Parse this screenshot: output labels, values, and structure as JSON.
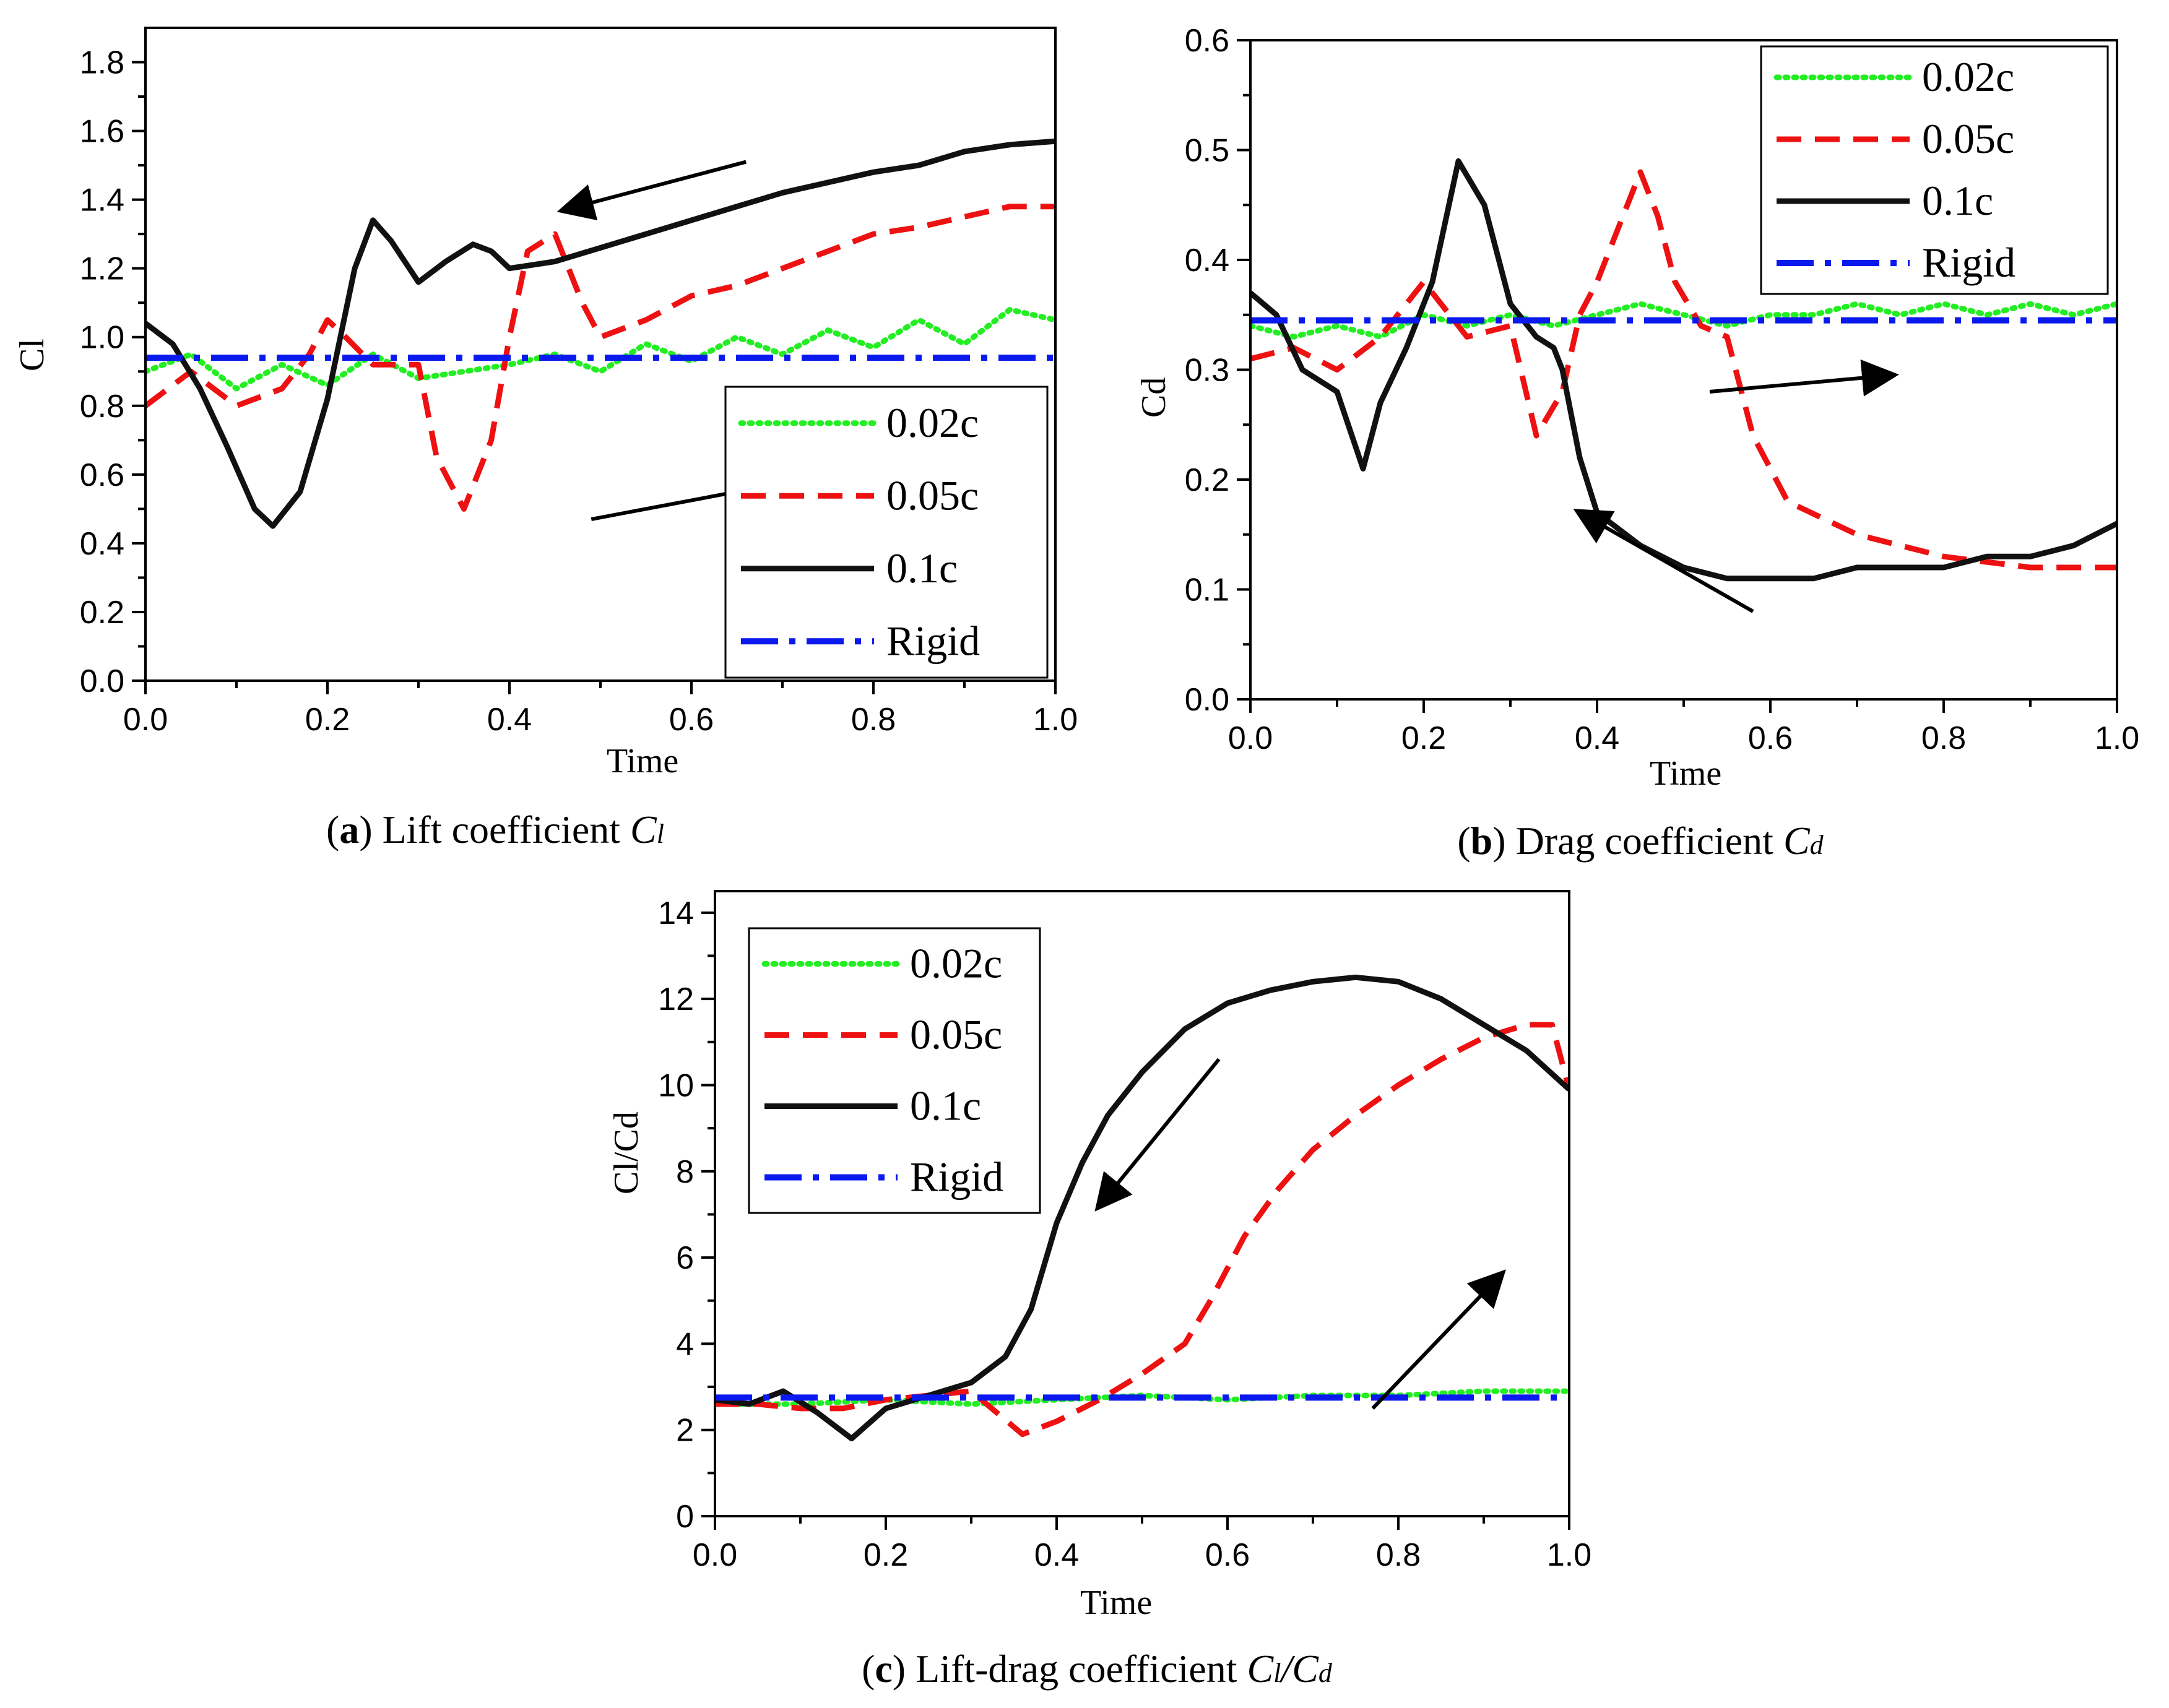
{
  "chart_data": [
    {
      "id": "a",
      "type": "line",
      "caption": {
        "letter": "a",
        "text": "Lift coefficient",
        "symbol": "C",
        "sub": "l"
      },
      "title": "",
      "xlabel": "Time",
      "ylabel": "Cl",
      "xlim": [
        0,
        1
      ],
      "ylim": [
        0,
        1.9
      ],
      "xticks": [
        0.0,
        0.2,
        0.4,
        0.6,
        0.8,
        1.0
      ],
      "xtick_labels": [
        "0.0",
        "0.2",
        "0.4",
        "0.6",
        "0.8",
        "1.0"
      ],
      "yticks": [
        0,
        0.2,
        0.4,
        0.6,
        0.8,
        1.0,
        1.2,
        1.4,
        1.6,
        1.8
      ],
      "ytick_labels": [
        "0.0",
        "0.2",
        "0.4",
        "0.6",
        "0.8",
        "1.0",
        "1.2",
        "1.4",
        "1.6",
        "1.8"
      ],
      "legend": {
        "position": "bottom-right",
        "entries": [
          "0.02c",
          "0.05c",
          "0.1c",
          "Rigid"
        ]
      },
      "series": [
        {
          "name": "0.02c",
          "color": "#22ee22",
          "style": "dotted",
          "x": [
            0,
            0.05,
            0.1,
            0.15,
            0.2,
            0.25,
            0.3,
            0.35,
            0.4,
            0.45,
            0.5,
            0.55,
            0.6,
            0.65,
            0.7,
            0.75,
            0.8,
            0.85,
            0.9,
            0.95,
            1.0
          ],
          "y": [
            0.9,
            0.95,
            0.85,
            0.92,
            0.86,
            0.95,
            0.88,
            0.9,
            0.92,
            0.95,
            0.9,
            0.98,
            0.93,
            1.0,
            0.95,
            1.02,
            0.97,
            1.05,
            0.98,
            1.08,
            1.05
          ]
        },
        {
          "name": "0.05c",
          "color": "#ee1111",
          "style": "dashed",
          "x": [
            0,
            0.05,
            0.1,
            0.15,
            0.18,
            0.2,
            0.22,
            0.25,
            0.3,
            0.32,
            0.35,
            0.38,
            0.4,
            0.42,
            0.45,
            0.48,
            0.5,
            0.55,
            0.6,
            0.65,
            0.7,
            0.75,
            0.8,
            0.85,
            0.9,
            0.95,
            1.0
          ],
          "y": [
            0.8,
            0.9,
            0.8,
            0.85,
            0.95,
            1.05,
            1.0,
            0.92,
            0.92,
            0.65,
            0.5,
            0.7,
            1.0,
            1.25,
            1.3,
            1.1,
            1.0,
            1.05,
            1.12,
            1.15,
            1.2,
            1.25,
            1.3,
            1.32,
            1.35,
            1.38,
            1.38
          ]
        },
        {
          "name": "0.1c",
          "color": "#111111",
          "style": "solid",
          "x": [
            0,
            0.03,
            0.06,
            0.09,
            0.12,
            0.14,
            0.17,
            0.2,
            0.23,
            0.25,
            0.27,
            0.3,
            0.33,
            0.36,
            0.38,
            0.4,
            0.45,
            0.5,
            0.55,
            0.6,
            0.65,
            0.7,
            0.75,
            0.8,
            0.85,
            0.9,
            0.95,
            1.0
          ],
          "y": [
            1.04,
            0.98,
            0.85,
            0.68,
            0.5,
            0.45,
            0.55,
            0.82,
            1.2,
            1.34,
            1.28,
            1.16,
            1.22,
            1.27,
            1.25,
            1.2,
            1.22,
            1.26,
            1.3,
            1.34,
            1.38,
            1.42,
            1.45,
            1.48,
            1.5,
            1.54,
            1.56,
            1.57
          ]
        },
        {
          "name": "Rigid",
          "color": "#0a1aee",
          "style": "dashdot",
          "x": [
            0,
            1.0
          ],
          "y": [
            0.94,
            0.94
          ]
        }
      ],
      "arrows": [
        {
          "from": [
            0.66,
            1.51
          ],
          "to": [
            0.46,
            1.37
          ]
        },
        {
          "from": [
            0.49,
            0.47
          ],
          "to": [
            0.71,
            0.58
          ]
        }
      ]
    },
    {
      "id": "b",
      "type": "line",
      "caption": {
        "letter": "b",
        "text": "Drag coefficient",
        "symbol": "C",
        "sub": "d"
      },
      "title": "",
      "xlabel": "Time",
      "ylabel": "Cd",
      "xlim": [
        0,
        1
      ],
      "ylim": [
        0,
        0.6
      ],
      "xticks": [
        0.0,
        0.2,
        0.4,
        0.6,
        0.8,
        1.0
      ],
      "xtick_labels": [
        "0.0",
        "0.2",
        "0.4",
        "0.6",
        "0.8",
        "1.0"
      ],
      "yticks": [
        0,
        0.1,
        0.2,
        0.3,
        0.4,
        0.5,
        0.6
      ],
      "ytick_labels": [
        "0.0",
        "0.1",
        "0.2",
        "0.3",
        "0.4",
        "0.5",
        "0.6"
      ],
      "legend": {
        "position": "top-right",
        "entries": [
          "0.02c",
          "0.05c",
          "0.1c",
          "Rigid"
        ]
      },
      "series": [
        {
          "name": "0.02c",
          "color": "#22ee22",
          "style": "dotted",
          "x": [
            0,
            0.05,
            0.1,
            0.15,
            0.2,
            0.25,
            0.3,
            0.35,
            0.4,
            0.45,
            0.5,
            0.55,
            0.6,
            0.65,
            0.7,
            0.75,
            0.8,
            0.85,
            0.9,
            0.95,
            1.0
          ],
          "y": [
            0.34,
            0.33,
            0.34,
            0.33,
            0.35,
            0.34,
            0.35,
            0.34,
            0.35,
            0.36,
            0.35,
            0.34,
            0.35,
            0.35,
            0.36,
            0.35,
            0.36,
            0.35,
            0.36,
            0.35,
            0.36
          ]
        },
        {
          "name": "0.05c",
          "color": "#ee1111",
          "style": "dashed",
          "x": [
            0,
            0.05,
            0.1,
            0.15,
            0.2,
            0.25,
            0.3,
            0.33,
            0.36,
            0.38,
            0.4,
            0.42,
            0.45,
            0.47,
            0.49,
            0.52,
            0.55,
            0.58,
            0.62,
            0.7,
            0.8,
            0.9,
            0.95,
            1.0
          ],
          "y": [
            0.31,
            0.32,
            0.3,
            0.33,
            0.38,
            0.33,
            0.34,
            0.24,
            0.28,
            0.35,
            0.38,
            0.42,
            0.48,
            0.44,
            0.38,
            0.34,
            0.33,
            0.24,
            0.18,
            0.15,
            0.13,
            0.12,
            0.12,
            0.12
          ]
        },
        {
          "name": "0.1c",
          "color": "#111111",
          "style": "solid",
          "x": [
            0,
            0.03,
            0.06,
            0.1,
            0.13,
            0.15,
            0.18,
            0.21,
            0.24,
            0.27,
            0.3,
            0.33,
            0.35,
            0.36,
            0.38,
            0.4,
            0.45,
            0.5,
            0.55,
            0.6,
            0.65,
            0.7,
            0.75,
            0.8,
            0.85,
            0.9,
            0.95,
            1.0
          ],
          "y": [
            0.37,
            0.35,
            0.3,
            0.28,
            0.21,
            0.27,
            0.32,
            0.38,
            0.49,
            0.45,
            0.36,
            0.33,
            0.32,
            0.3,
            0.22,
            0.17,
            0.14,
            0.12,
            0.11,
            0.11,
            0.11,
            0.12,
            0.12,
            0.12,
            0.13,
            0.13,
            0.14,
            0.16
          ]
        },
        {
          "name": "Rigid",
          "color": "#0a1aee",
          "style": "dashdot",
          "x": [
            0,
            1.0
          ],
          "y": [
            0.345,
            0.345
          ]
        }
      ],
      "arrows": [
        {
          "from": [
            0.58,
            0.08
          ],
          "to": [
            0.38,
            0.17
          ]
        },
        {
          "from": [
            0.53,
            0.28
          ],
          "to": [
            0.74,
            0.295
          ]
        }
      ]
    },
    {
      "id": "c",
      "type": "line",
      "caption": {
        "letter": "c",
        "text": "Lift-drag coefficient",
        "symbol": "C",
        "sub": "l",
        "symbol2": "C",
        "sub2": "d"
      },
      "title": "",
      "xlabel": "Time",
      "ylabel": "Cl/Cd",
      "xlim": [
        0,
        1
      ],
      "ylim": [
        0,
        14.5
      ],
      "xticks": [
        0.0,
        0.2,
        0.4,
        0.6,
        0.8,
        1.0
      ],
      "xtick_labels": [
        "0.0",
        "0.2",
        "0.4",
        "0.6",
        "0.8",
        "1.0"
      ],
      "yticks": [
        0,
        2,
        4,
        6,
        8,
        10,
        12,
        14
      ],
      "ytick_labels": [
        "0",
        "2",
        "4",
        "6",
        "8",
        "10",
        "12",
        "14"
      ],
      "legend": {
        "position": "top-left",
        "entries": [
          "0.02c",
          "0.05c",
          "0.1c",
          "Rigid"
        ]
      },
      "series": [
        {
          "name": "0.02c",
          "color": "#22ee22",
          "style": "dotted",
          "x": [
            0,
            0.1,
            0.2,
            0.3,
            0.4,
            0.5,
            0.6,
            0.7,
            0.8,
            0.9,
            1.0
          ],
          "y": [
            2.6,
            2.6,
            2.7,
            2.6,
            2.7,
            2.8,
            2.7,
            2.8,
            2.8,
            2.9,
            2.9
          ]
        },
        {
          "name": "0.05c",
          "color": "#ee1111",
          "style": "dashed",
          "x": [
            0,
            0.05,
            0.1,
            0.15,
            0.2,
            0.25,
            0.3,
            0.33,
            0.36,
            0.4,
            0.45,
            0.5,
            0.55,
            0.58,
            0.62,
            0.66,
            0.7,
            0.75,
            0.8,
            0.85,
            0.9,
            0.95,
            0.98,
            1.0
          ],
          "y": [
            2.6,
            2.6,
            2.5,
            2.5,
            2.7,
            2.8,
            2.9,
            2.4,
            1.9,
            2.2,
            2.7,
            3.3,
            4.0,
            5.0,
            6.5,
            7.6,
            8.5,
            9.3,
            10.0,
            10.6,
            11.1,
            11.4,
            11.4,
            9.9
          ]
        },
        {
          "name": "0.1c",
          "color": "#111111",
          "style": "solid",
          "x": [
            0,
            0.04,
            0.08,
            0.12,
            0.16,
            0.2,
            0.25,
            0.3,
            0.34,
            0.37,
            0.4,
            0.43,
            0.46,
            0.5,
            0.55,
            0.6,
            0.65,
            0.7,
            0.75,
            0.8,
            0.85,
            0.9,
            0.95,
            1.0
          ],
          "y": [
            2.7,
            2.6,
            2.9,
            2.4,
            1.8,
            2.5,
            2.8,
            3.1,
            3.7,
            4.8,
            6.8,
            8.2,
            9.3,
            10.3,
            11.3,
            11.9,
            12.2,
            12.4,
            12.5,
            12.4,
            12.0,
            11.4,
            10.8,
            9.9
          ]
        },
        {
          "name": "Rigid",
          "color": "#0a1aee",
          "style": "dashdot",
          "x": [
            0,
            1.0
          ],
          "y": [
            2.75,
            2.75
          ]
        }
      ],
      "arrows": [
        {
          "from": [
            0.59,
            10.6
          ],
          "to": [
            0.45,
            7.2
          ]
        },
        {
          "from": [
            0.77,
            2.5
          ],
          "to": [
            0.92,
            5.6
          ]
        }
      ]
    }
  ]
}
